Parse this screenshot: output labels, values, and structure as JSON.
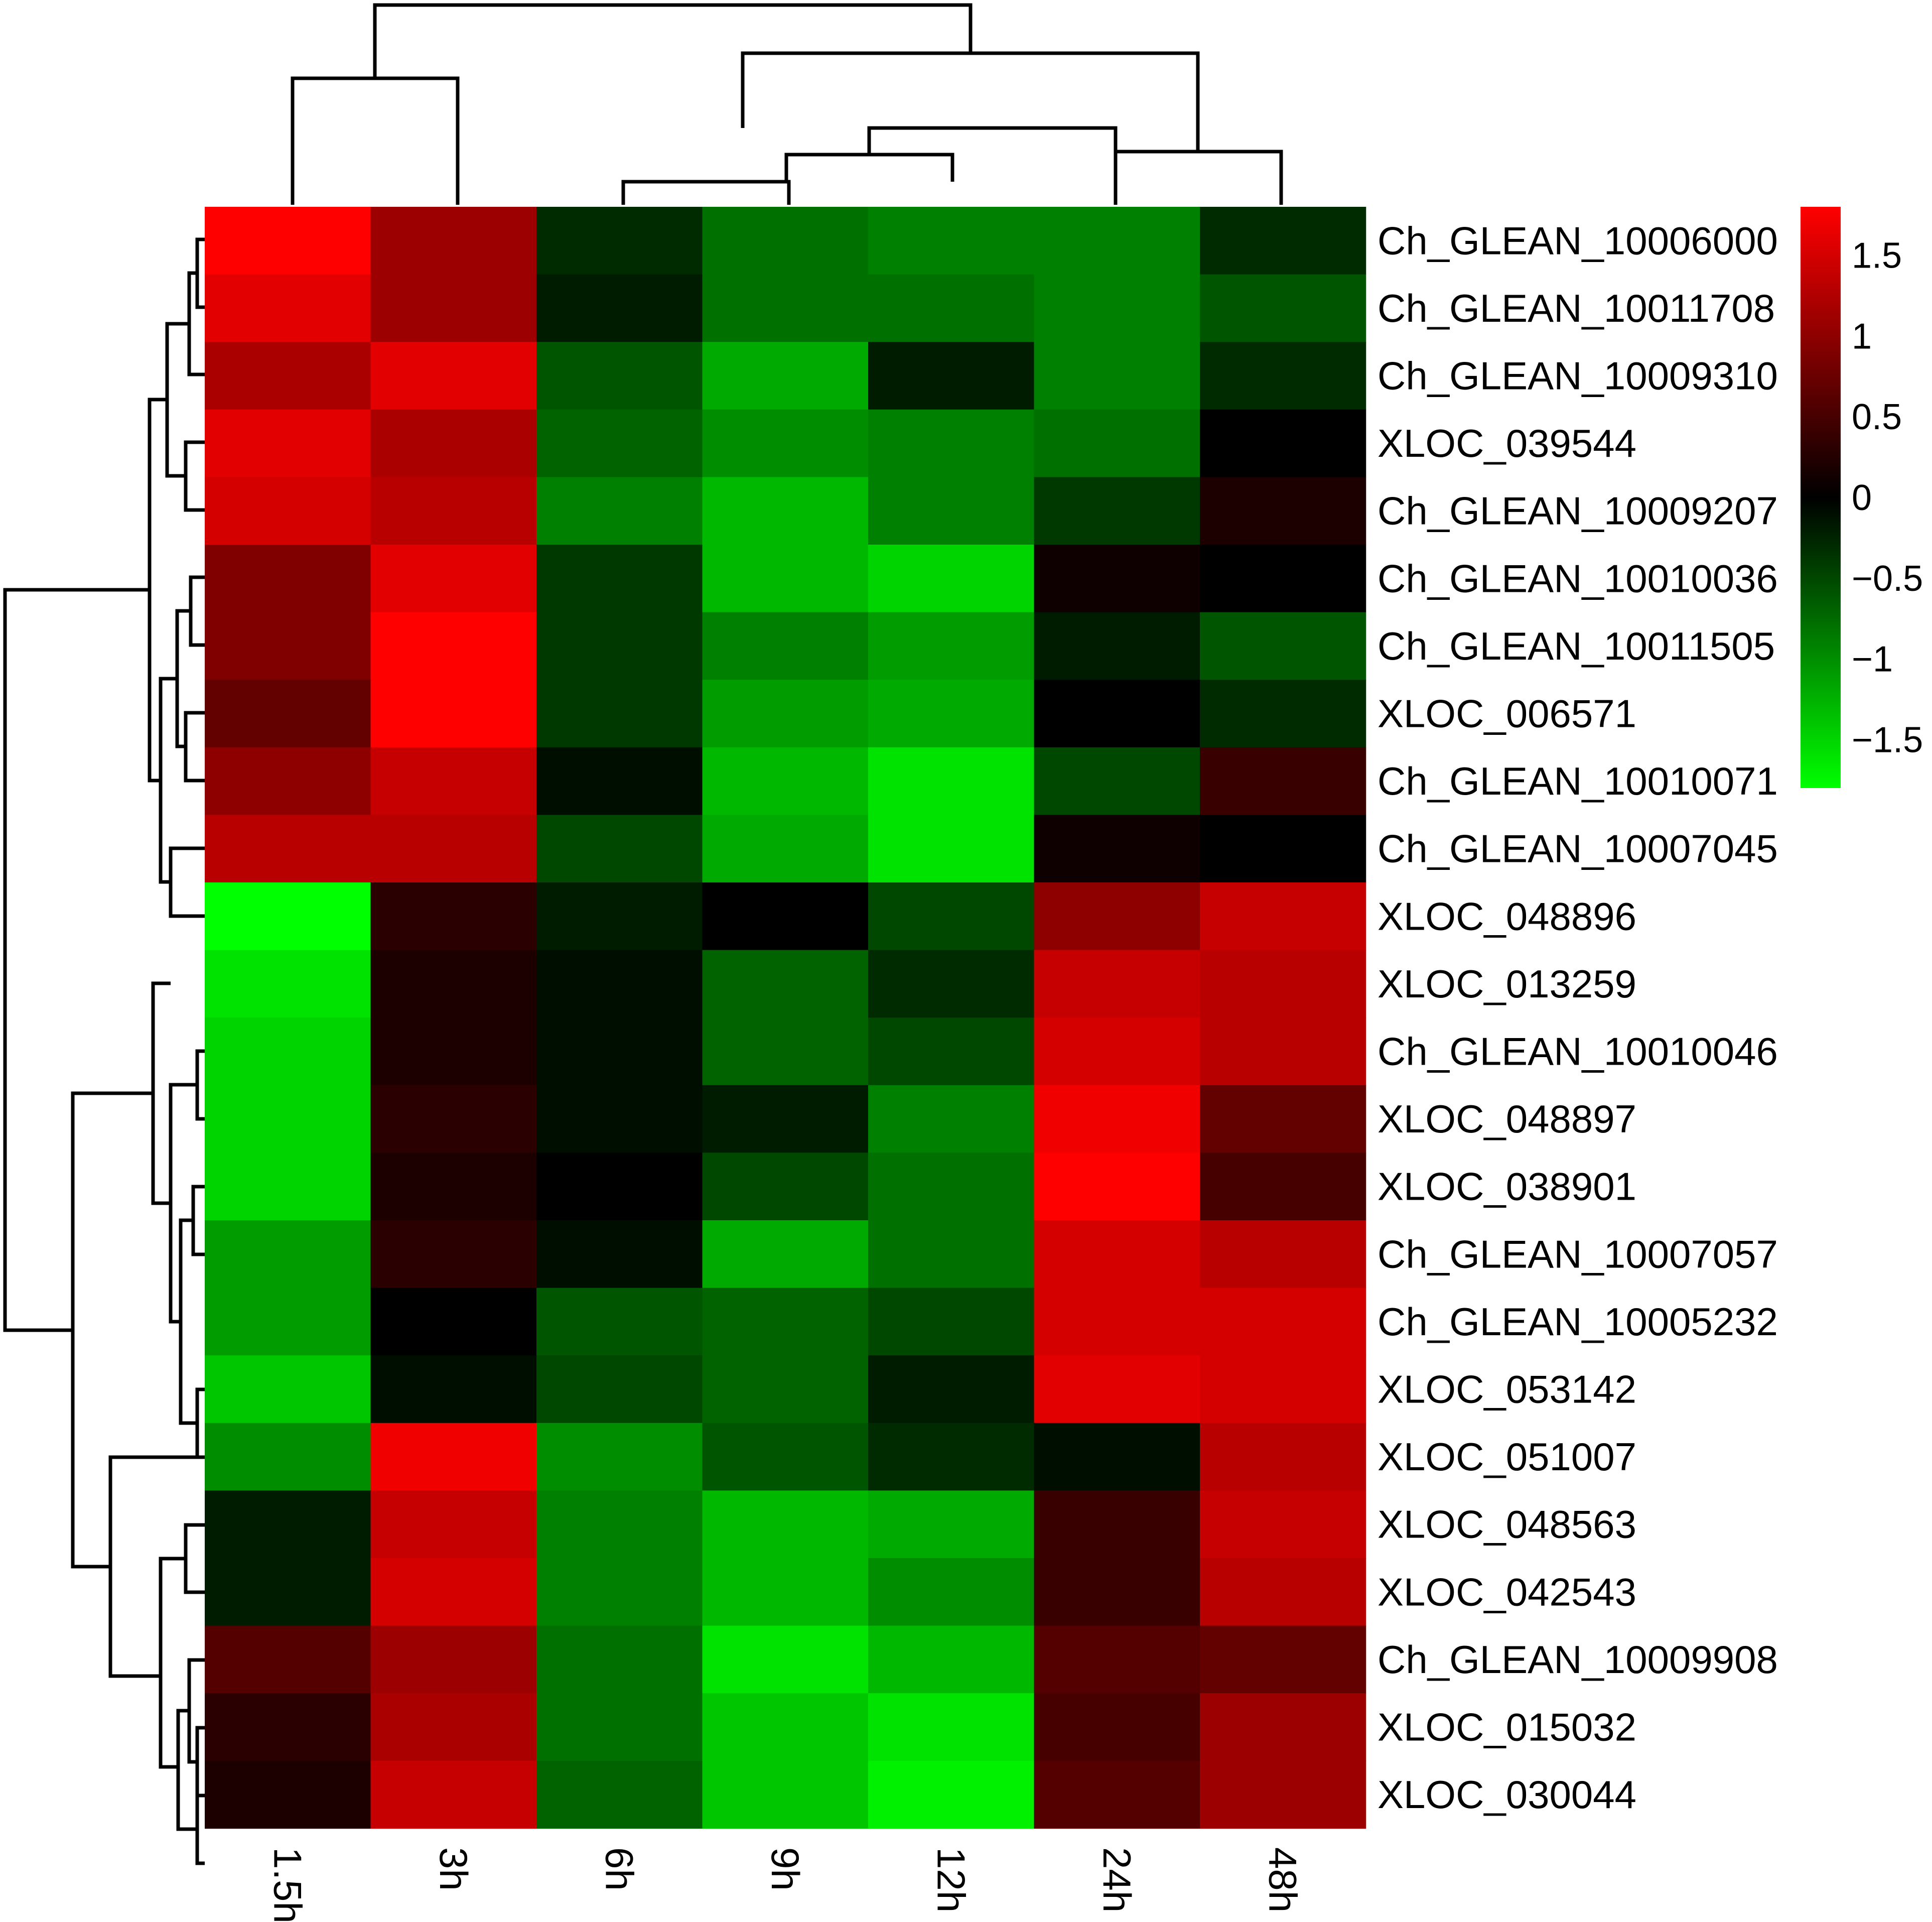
{
  "chart_data": {
    "type": "heatmap",
    "title": "",
    "xlabel": "",
    "ylabel": "",
    "columns": [
      "1.5h",
      "3h",
      "6h",
      "9h",
      "12h",
      "24h",
      "48h"
    ],
    "rows": [
      "Ch_GLEAN_10006000",
      "Ch_GLEAN_10011708",
      "Ch_GLEAN_10009310",
      "XLOC_039544",
      "Ch_GLEAN_10009207",
      "Ch_GLEAN_10010036",
      "Ch_GLEAN_10011505",
      "XLOC_006571",
      "Ch_GLEAN_10010071",
      "Ch_GLEAN_10007045",
      "XLOC_048896",
      "XLOC_013259",
      "Ch_GLEAN_10010046",
      "XLOC_048897",
      "XLOC_038901",
      "Ch_GLEAN_10007057",
      "Ch_GLEAN_10005232",
      "XLOC_053142",
      "XLOC_051007",
      "XLOC_048563",
      "XLOC_042543",
      "Ch_GLEAN_10009908",
      "XLOC_015032",
      "XLOC_030044"
    ],
    "values": [
      [
        1.8,
        1.1,
        -0.3,
        -0.8,
        -0.9,
        -0.9,
        -0.3
      ],
      [
        1.6,
        1.1,
        -0.2,
        -0.8,
        -0.8,
        -0.9,
        -0.6
      ],
      [
        1.2,
        1.6,
        -0.6,
        -1.2,
        -0.2,
        -0.9,
        -0.3
      ],
      [
        1.6,
        1.2,
        -0.7,
        -1.0,
        -0.9,
        -0.8,
        0.0
      ],
      [
        1.5,
        1.3,
        -0.9,
        -1.3,
        -0.9,
        -0.4,
        0.2
      ],
      [
        0.9,
        1.6,
        -0.4,
        -1.3,
        -1.5,
        0.1,
        0.0
      ],
      [
        0.9,
        1.8,
        -0.4,
        -0.9,
        -1.1,
        -0.2,
        -0.6
      ],
      [
        0.7,
        1.8,
        -0.4,
        -1.1,
        -1.2,
        0.0,
        -0.3
      ],
      [
        1.0,
        1.4,
        -0.1,
        -1.3,
        -1.6,
        -0.5,
        0.4
      ],
      [
        1.3,
        1.3,
        -0.5,
        -1.2,
        -1.6,
        0.1,
        0.0
      ],
      [
        -1.8,
        0.3,
        -0.2,
        0.0,
        -0.5,
        1.0,
        1.4
      ],
      [
        -1.6,
        0.2,
        -0.1,
        -0.7,
        -0.3,
        1.4,
        1.3
      ],
      [
        -1.5,
        0.2,
        -0.1,
        -0.7,
        -0.5,
        1.5,
        1.3
      ],
      [
        -1.5,
        0.3,
        -0.1,
        -0.2,
        -0.9,
        1.7,
        0.7
      ],
      [
        -1.5,
        0.2,
        0.0,
        -0.5,
        -0.8,
        1.8,
        0.5
      ],
      [
        -1.1,
        0.3,
        -0.1,
        -1.2,
        -0.8,
        1.5,
        1.3
      ],
      [
        -1.1,
        0.0,
        -0.6,
        -0.7,
        -0.5,
        1.5,
        1.5
      ],
      [
        -1.4,
        -0.1,
        -0.5,
        -0.7,
        -0.2,
        1.6,
        1.5
      ],
      [
        -1.0,
        1.7,
        -1.0,
        -0.6,
        -0.3,
        -0.1,
        1.3
      ],
      [
        -0.2,
        1.4,
        -0.9,
        -1.3,
        -1.2,
        0.4,
        1.4
      ],
      [
        -0.2,
        1.5,
        -0.9,
        -1.3,
        -1.0,
        0.4,
        1.3
      ],
      [
        0.6,
        1.1,
        -0.8,
        -1.6,
        -1.3,
        0.6,
        0.7
      ],
      [
        0.3,
        1.2,
        -0.8,
        -1.4,
        -1.6,
        0.5,
        1.1
      ],
      [
        0.2,
        1.4,
        -0.7,
        -1.4,
        -1.7,
        0.6,
        1.1
      ]
    ],
    "colorscale": {
      "min": -1.8,
      "mid": 0,
      "max": 1.8,
      "low_color": "#00ff00",
      "mid_color": "#000000",
      "high_color": "#ff0000"
    },
    "colorbar": {
      "ticks": [
        "1.5",
        "1",
        "0.5",
        "0",
        "−0.5",
        "−1",
        "−1.5"
      ],
      "tick_values": [
        1.5,
        1,
        0.5,
        0,
        -0.5,
        -1,
        -1.5
      ]
    },
    "column_dendrogram": true,
    "row_dendrogram": true,
    "legend_position": "right"
  }
}
